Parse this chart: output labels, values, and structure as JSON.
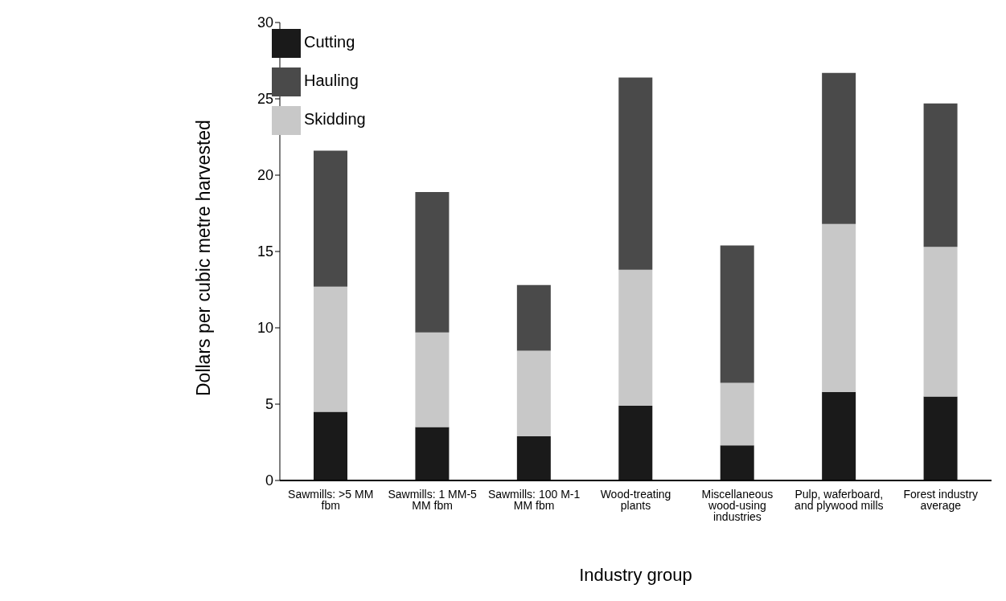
{
  "chart_data": {
    "type": "bar",
    "stacked": true,
    "xlabel": "Industry group",
    "ylabel": "Dollars per cubic metre harvested",
    "categories": [
      "Sawmills: >5 MM fbm",
      "Sawmills: 1 MM-5 MM fbm",
      "Sawmills: 100 M-1 MM fbm",
      "Wood-treating plants",
      "Miscellaneous wood-using industries",
      "Pulp, waferboard, and plywood mills",
      "Forest industry average"
    ],
    "series": [
      {
        "name": "Cutting",
        "color": "#1a1a1a",
        "values": [
          4.5,
          3.5,
          2.9,
          4.9,
          2.3,
          5.8,
          5.5
        ]
      },
      {
        "name": "Skidding",
        "color": "#c8c8c8",
        "values": [
          8.2,
          6.2,
          5.6,
          8.9,
          4.1,
          11.0,
          9.8
        ]
      },
      {
        "name": "Hauling",
        "color": "#4a4a4a",
        "values": [
          8.9,
          9.2,
          4.3,
          12.6,
          9.0,
          9.9,
          9.4
        ]
      }
    ],
    "ylim": [
      0,
      30
    ],
    "yticks": [
      0,
      5,
      10,
      15,
      20,
      25,
      30
    ],
    "grid": false,
    "legend": "top left"
  }
}
